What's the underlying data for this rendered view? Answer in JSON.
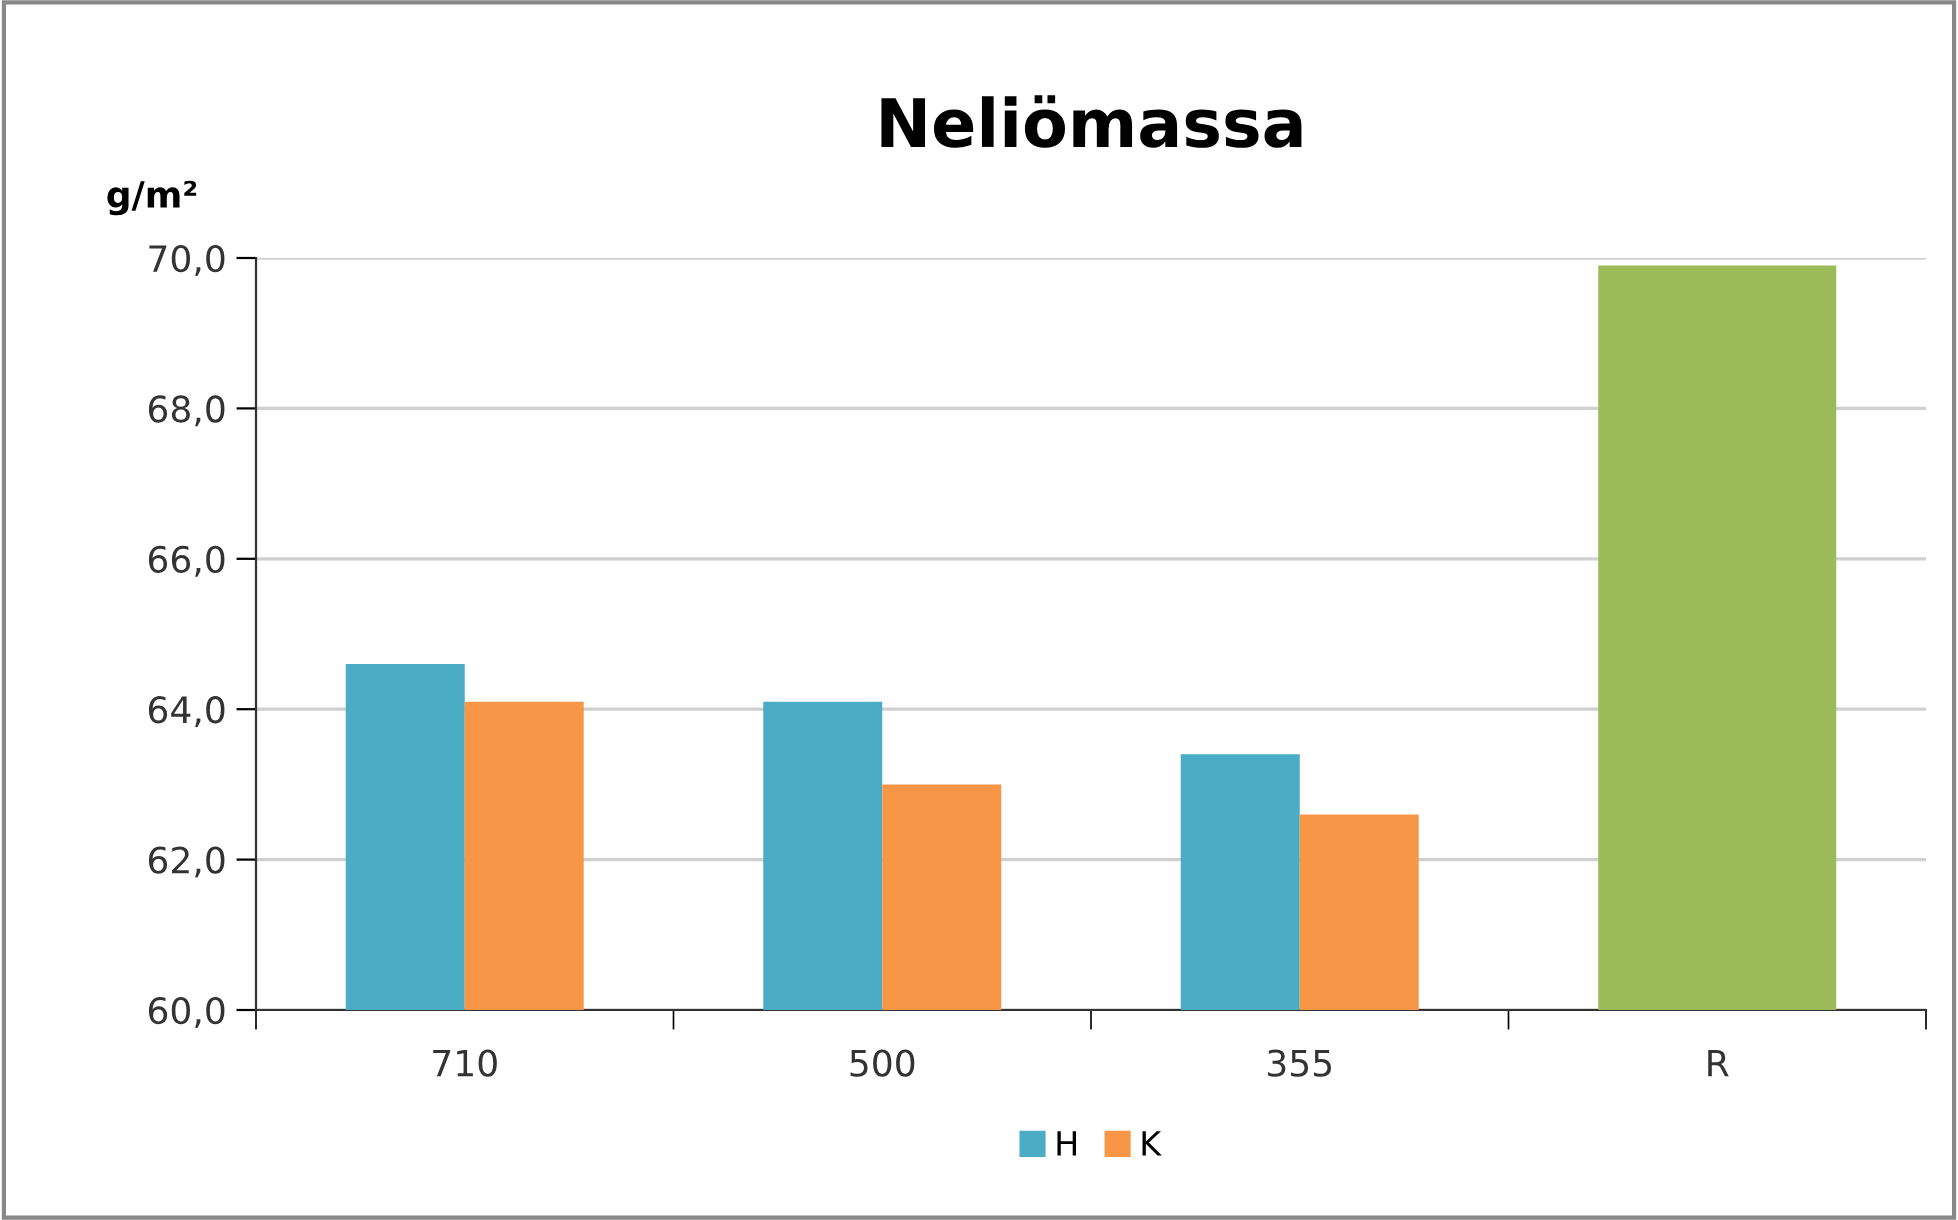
{
  "chart_data": {
    "type": "bar",
    "title": "Neliömassa",
    "ylabel": "g/m²",
    "categories": [
      "710",
      "500",
      "355",
      "R"
    ],
    "series": [
      {
        "name": "H",
        "color": "#4bacc6",
        "values": [
          64.6,
          64.1,
          63.4,
          null
        ]
      },
      {
        "name": "K",
        "color": "#f79646",
        "values": [
          64.1,
          63.0,
          62.6,
          null
        ]
      },
      {
        "color": "#9bbb59",
        "values": [
          null,
          null,
          null,
          69.9
        ]
      }
    ],
    "ylim": [
      60,
      70
    ],
    "yticks": [
      {
        "value": 60,
        "label": "60,0"
      },
      {
        "value": 62,
        "label": "62,0"
      },
      {
        "value": 64,
        "label": "64,0"
      },
      {
        "value": 66,
        "label": "66,0"
      },
      {
        "value": 68,
        "label": "68,0"
      },
      {
        "value": 70,
        "label": "70,0"
      }
    ],
    "grid": "y",
    "legend": "bottom"
  }
}
